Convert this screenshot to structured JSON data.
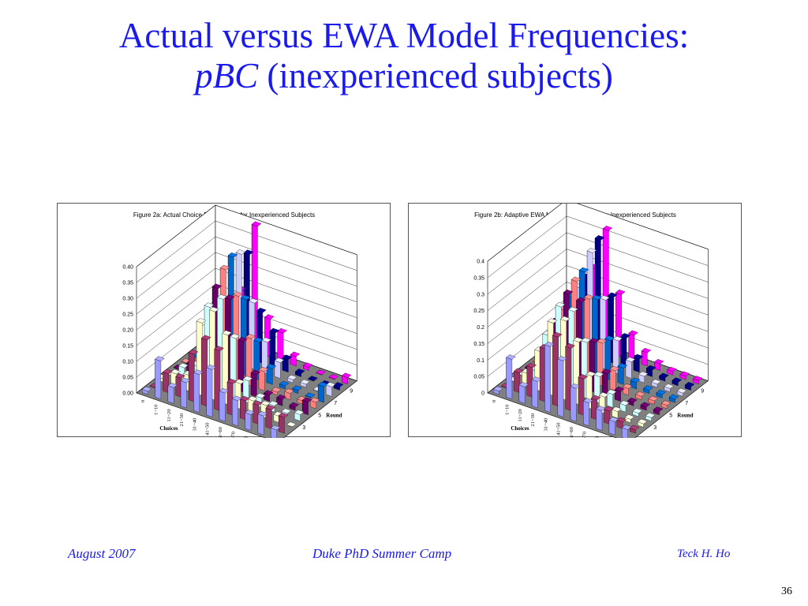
{
  "slide": {
    "title_line1": "Actual versus EWA Model Frequencies:",
    "title_italic": "pBC",
    "title_rest": " (inexperienced subjects)",
    "footer_left": "August 2007",
    "footer_center": "Duke PhD Summer Camp",
    "footer_right": "Teck H. Ho",
    "page_number": "36"
  },
  "chart_data": [
    {
      "type": "bar3d",
      "title": "Figure 2a: Actual Choice Frequencies for Inexperienced Subjects",
      "xlabel": "Choices",
      "zlabel": "Round",
      "categories": [
        "0",
        "1~10",
        "11~20",
        "21~30",
        "31~40",
        "41~50",
        "51~60",
        "61~70",
        "71~80",
        "81~90",
        "91~100"
      ],
      "rounds": [
        1,
        2,
        3,
        4,
        5,
        6,
        7,
        8,
        9,
        10
      ],
      "round_tick_labels": [
        "1",
        "3",
        "5",
        "7",
        "9"
      ],
      "ylim": [
        0,
        0.4
      ],
      "yticks": [
        "0.00",
        "0.05",
        "0.10",
        "0.15",
        "0.20",
        "0.25",
        "0.30",
        "0.35",
        "0.40"
      ],
      "values": [
        [
          0.01,
          0.12,
          0.05,
          0.08,
          0.12,
          0.15,
          0.09,
          0.08,
          0.05,
          0.06,
          0.03
        ],
        [
          0.0,
          0.06,
          0.06,
          0.15,
          0.21,
          0.19,
          0.1,
          0.06,
          0.06,
          0.06,
          0.05
        ],
        [
          0.01,
          0.04,
          0.05,
          0.23,
          0.28,
          0.22,
          0.08,
          0.04,
          0.04,
          0.02,
          0.0
        ],
        [
          0.0,
          0.04,
          0.06,
          0.26,
          0.3,
          0.19,
          0.07,
          0.03,
          0.02,
          0.01,
          0.02
        ],
        [
          0.0,
          0.03,
          0.08,
          0.3,
          0.28,
          0.16,
          0.07,
          0.02,
          0.02,
          0.01,
          0.04
        ],
        [
          0.0,
          0.02,
          0.09,
          0.34,
          0.27,
          0.15,
          0.06,
          0.01,
          0.02,
          0.01,
          0.02
        ],
        [
          0.0,
          0.01,
          0.1,
          0.36,
          0.24,
          0.12,
          0.05,
          0.01,
          0.01,
          0.0,
          0.05
        ],
        [
          0.0,
          0.01,
          0.12,
          0.35,
          0.21,
          0.1,
          0.05,
          0.01,
          0.01,
          0.0,
          0.03
        ],
        [
          0.0,
          0.01,
          0.15,
          0.33,
          0.16,
          0.11,
          0.04,
          0.01,
          0.0,
          0.0,
          0.01
        ],
        [
          0.0,
          0.02,
          0.18,
          0.4,
          0.12,
          0.09,
          0.03,
          0.01,
          0.0,
          0.0,
          0.02
        ]
      ]
    },
    {
      "type": "bar3d",
      "title": "Figure 2b: Adaptive EWA Model Frequencies for Inexperienced Subjects",
      "xlabel": "Choices",
      "zlabel": "Round",
      "categories": [
        "0",
        "1~10",
        "11~20",
        "21~30",
        "31~40",
        "41~50",
        "51~60",
        "61~70",
        "71~80",
        "81~90",
        "91~100"
      ],
      "rounds": [
        1,
        2,
        3,
        4,
        5,
        6,
        7,
        8,
        9,
        10
      ],
      "round_tick_labels": [
        "1",
        "3",
        "5",
        "7",
        "9"
      ],
      "ylim": [
        0,
        0.4
      ],
      "yticks": [
        "0",
        "0.05",
        "0.1",
        "0.15",
        "0.2",
        "0.25",
        "0.3",
        "0.35",
        "0.4"
      ],
      "values": [
        [
          0.01,
          0.12,
          0.05,
          0.08,
          0.2,
          0.17,
          0.1,
          0.07,
          0.06,
          0.04,
          0.03
        ],
        [
          0.0,
          0.06,
          0.09,
          0.16,
          0.21,
          0.19,
          0.11,
          0.06,
          0.04,
          0.02,
          0.01
        ],
        [
          0.0,
          0.04,
          0.12,
          0.22,
          0.24,
          0.19,
          0.1,
          0.05,
          0.02,
          0.01,
          0.01
        ],
        [
          0.0,
          0.03,
          0.15,
          0.25,
          0.25,
          0.17,
          0.08,
          0.04,
          0.02,
          0.01,
          0.01
        ],
        [
          0.0,
          0.02,
          0.17,
          0.27,
          0.26,
          0.15,
          0.07,
          0.03,
          0.01,
          0.01,
          0.01
        ],
        [
          0.0,
          0.02,
          0.19,
          0.29,
          0.25,
          0.13,
          0.06,
          0.02,
          0.01,
          0.01,
          0.01
        ],
        [
          0.0,
          0.02,
          0.21,
          0.3,
          0.23,
          0.12,
          0.05,
          0.02,
          0.01,
          0.01,
          0.01
        ],
        [
          0.0,
          0.01,
          0.22,
          0.34,
          0.21,
          0.1,
          0.05,
          0.02,
          0.01,
          0.01,
          0.01
        ],
        [
          0.0,
          0.01,
          0.23,
          0.36,
          0.2,
          0.09,
          0.04,
          0.02,
          0.01,
          0.01,
          0.01
        ],
        [
          0.0,
          0.01,
          0.24,
          0.37,
          0.19,
          0.08,
          0.04,
          0.02,
          0.01,
          0.01,
          0.01
        ]
      ]
    }
  ],
  "colors": {
    "title": "#1a1aee",
    "rounds": [
      "#9999ff",
      "#993366",
      "#ffffcc",
      "#ccffff",
      "#660066",
      "#ff8080",
      "#0066cc",
      "#ccccff",
      "#000080",
      "#ff00ff"
    ],
    "floor": "#808080"
  }
}
